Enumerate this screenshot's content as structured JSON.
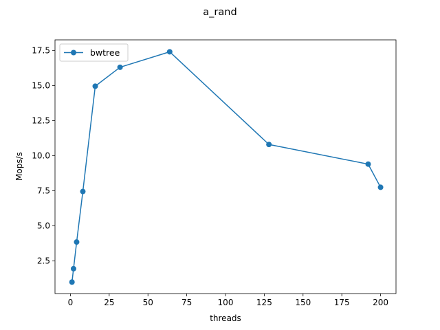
{
  "chart_data": {
    "type": "line",
    "title": "a_rand",
    "xlabel": "threads",
    "ylabel": "Mops/s",
    "xlim": [
      -9.95,
      209.95
    ],
    "ylim": [
      0.18,
      18.25
    ],
    "xticks": [
      0,
      25,
      50,
      75,
      100,
      125,
      150,
      175,
      200
    ],
    "xtick_labels": [
      "0",
      "25",
      "50",
      "75",
      "100",
      "125",
      "150",
      "175",
      "200"
    ],
    "yticks": [
      2.5,
      5.0,
      7.5,
      10.0,
      12.5,
      15.0,
      17.5
    ],
    "ytick_labels": [
      "2.5",
      "5.0",
      "7.5",
      "10.0",
      "12.5",
      "15.0",
      "17.5"
    ],
    "grid": false,
    "legend_position": "upper-left",
    "series": [
      {
        "name": "bwtree",
        "color": "#1f77b4",
        "marker": "circle",
        "x": [
          1,
          2,
          4,
          8,
          16,
          32,
          64,
          128,
          192,
          200
        ],
        "y": [
          1.0,
          1.95,
          3.85,
          7.45,
          14.95,
          16.3,
          17.4,
          10.8,
          9.4,
          7.75
        ]
      }
    ]
  }
}
